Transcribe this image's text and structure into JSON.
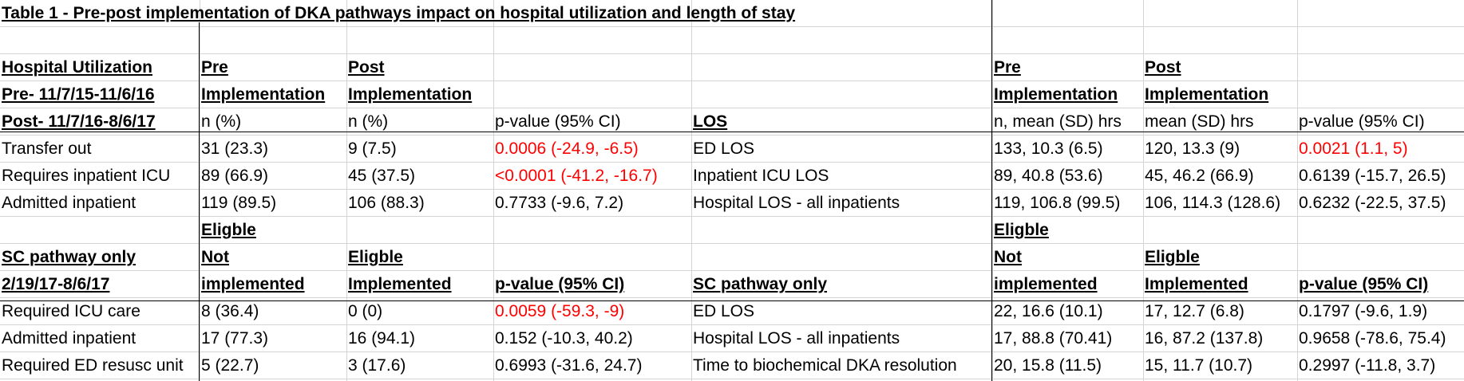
{
  "title": "Table 1 - Pre-post implementation of DKA pathways impact on hospital utilization and length of stay",
  "section1": {
    "left_header": [
      "Hospital Utilization",
      "Pre- 11/7/15-11/6/16",
      "Post- 11/7/16-8/6/17"
    ],
    "pre_header": [
      "Pre",
      "Implementation",
      "n (%)"
    ],
    "post_header": [
      "Post",
      "Implementation",
      "n (%)"
    ],
    "pvalue_header": "p-value (95% CI)",
    "los_header": "LOS",
    "los_pre_header": [
      "Pre",
      "Implementation",
      "n, mean (SD) hrs"
    ],
    "los_post_header": [
      "Post",
      "Implementation",
      "mean (SD) hrs"
    ],
    "los_pvalue_header": "p-value (95% CI)",
    "rows": [
      {
        "label": "Transfer out",
        "pre": "31 (23.3)",
        "post": "9 (7.5)",
        "pvalue": "0.0006 (-24.9, -6.5)",
        "pvalue_sig": true,
        "los_label": "ED LOS",
        "los_pre": "133, 10.3 (6.5)",
        "los_post": "120, 13.3 (9)",
        "los_pvalue": "0.0021 (1.1, 5)",
        "los_pvalue_sig": true
      },
      {
        "label": "Requires inpatient ICU",
        "pre": "89 (66.9)",
        "post": "45 (37.5)",
        "pvalue": "<0.0001 (-41.2, -16.7)",
        "pvalue_sig": true,
        "los_label": "Inpatient ICU LOS",
        "los_pre": "89, 40.8 (53.6)",
        "los_post": "45, 46.2 (66.9)",
        "los_pvalue": "0.6139 (-15.7, 26.5)",
        "los_pvalue_sig": false
      },
      {
        "label": "Admitted inpatient",
        "pre": "119 (89.5)",
        "post": "106 (88.3)",
        "pvalue": "0.7733 (-9.6, 7.2)",
        "pvalue_sig": false,
        "los_label": "Hospital LOS - all inpatients",
        "los_pre": "119, 106.8 (99.5)",
        "los_post": "106, 114.3 (128.6)",
        "los_pvalue": "0.6232 (-22.5, 37.5)",
        "los_pvalue_sig": false
      }
    ]
  },
  "section2": {
    "left_header": [
      "SC pathway only",
      "2/19/17-8/6/17"
    ],
    "pre_header": [
      "Eligble",
      "Not",
      "implemented"
    ],
    "post_header": [
      "Eligble",
      "Implemented"
    ],
    "pvalue_header": "p-value (95% CI)",
    "los_header": "SC pathway only",
    "los_pre_header": [
      "Eligble",
      "Not",
      "implemented"
    ],
    "los_post_header": [
      "Eligble",
      "Implemented"
    ],
    "los_pvalue_header": "p-value (95% CI)",
    "rows": [
      {
        "label": "Required ICU care",
        "pre": "8 (36.4)",
        "post": "0 (0)",
        "pvalue": "0.0059 (-59.3, -9)",
        "pvalue_sig": true,
        "los_label": "ED LOS",
        "los_pre": "22, 16.6 (10.1)",
        "los_post": "17, 12.7 (6.8)",
        "los_pvalue": "0.1797 (-9.6, 1.9)",
        "los_pvalue_sig": false
      },
      {
        "label": "Admitted inpatient",
        "pre": "17 (77.3)",
        "post": "16 (94.1)",
        "pvalue": "0.152 (-10.3, 40.2)",
        "pvalue_sig": false,
        "los_label": "Hospital LOS - all inpatients",
        "los_pre": "17, 88.8 (70.41)",
        "los_post": "16, 87.2 (137.8)",
        "los_pvalue": "0.9658 (-78.6, 75.4)",
        "los_pvalue_sig": false
      },
      {
        "label": "Required ED resusc unit",
        "pre": "5 (22.7)",
        "post": "3 (17.6)",
        "pvalue": "0.6993 (-31.6, 24.7)",
        "pvalue_sig": false,
        "los_label": "Time to biochemical DKA resolution",
        "los_pre": "20, 15.8 (11.5)",
        "los_post": "15, 11.7 (10.7)",
        "los_pvalue": "0.2997 (-11.8, 3.7)",
        "los_pvalue_sig": false
      }
    ]
  },
  "colors": {
    "significant": "#ff0000",
    "gridline": "#d4d4d4",
    "border": "#000000"
  }
}
